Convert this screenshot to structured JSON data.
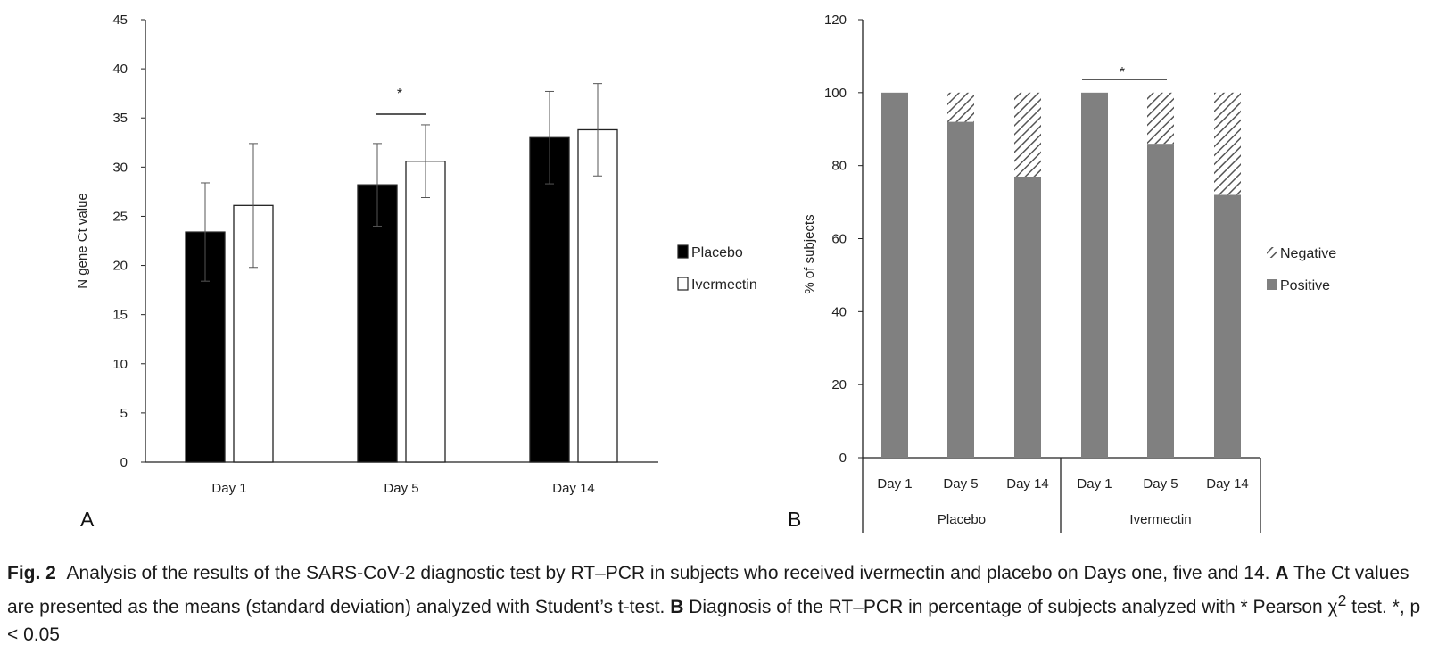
{
  "chart_data": [
    {
      "type": "bar",
      "panel_label": "A",
      "ylabel": "N gene Ct value",
      "xlabel": "",
      "ylim": [
        0,
        45
      ],
      "yticks": [
        0,
        5,
        10,
        15,
        20,
        25,
        30,
        35,
        40,
        45
      ],
      "categories": [
        "Day 1",
        "Day 5",
        "Day 14"
      ],
      "series": [
        {
          "name": "Placebo",
          "values": [
            23.4,
            28.2,
            33.0
          ],
          "sd": [
            5.0,
            4.2,
            4.7
          ],
          "color": "#000000"
        },
        {
          "name": "Ivermectin",
          "values": [
            26.1,
            30.6,
            33.8
          ],
          "sd": [
            6.3,
            3.7,
            4.7
          ],
          "color": "#ffffff"
        }
      ],
      "significance": {
        "category": "Day 5",
        "label": "*"
      },
      "legend_position": "right",
      "grid": false
    },
    {
      "type": "bar",
      "stacked": true,
      "panel_label": "B",
      "ylabel": "% of subjects",
      "xlabel": "",
      "ylim": [
        0,
        120
      ],
      "yticks": [
        0,
        20,
        40,
        60,
        80,
        100,
        120
      ],
      "groups": [
        {
          "name": "Placebo",
          "categories": [
            "Day 1",
            "Day 5",
            "Day 14"
          ]
        },
        {
          "name": "Ivermectin",
          "categories": [
            "Day 1",
            "Day 5",
            "Day 14"
          ]
        }
      ],
      "series": [
        {
          "name": "Positive",
          "values": [
            100,
            92,
            77,
            100,
            86,
            72
          ],
          "color": "#808080"
        },
        {
          "name": "Negative",
          "values": [
            0,
            8,
            23,
            0,
            14,
            28
          ],
          "pattern": "diagonal-hatch"
        }
      ],
      "legend_order": [
        "Negative",
        "Positive"
      ],
      "significance": {
        "from_group": "Ivermectin",
        "from": "Day 1",
        "to": "Day 5",
        "label": "*"
      },
      "legend_position": "right",
      "grid": false
    }
  ],
  "caption": {
    "fig_label": "Fig. 2",
    "text1": "Analysis of the results of the SARS-CoV-2 diagnostic test by RT–PCR in subjects who received ivermectin and placebo on Days one, five and 14. ",
    "a_label": "A",
    "text2": " The Ct values are presented as the means (standard deviation) analyzed with Student’s t-test. ",
    "b_label": "B",
    "text3": " Diagnosis of the RT–PCR in percentage of subjects analyzed with * Pearson χ",
    "superscript": "2",
    "text4": " test. *, p < 0.05"
  }
}
